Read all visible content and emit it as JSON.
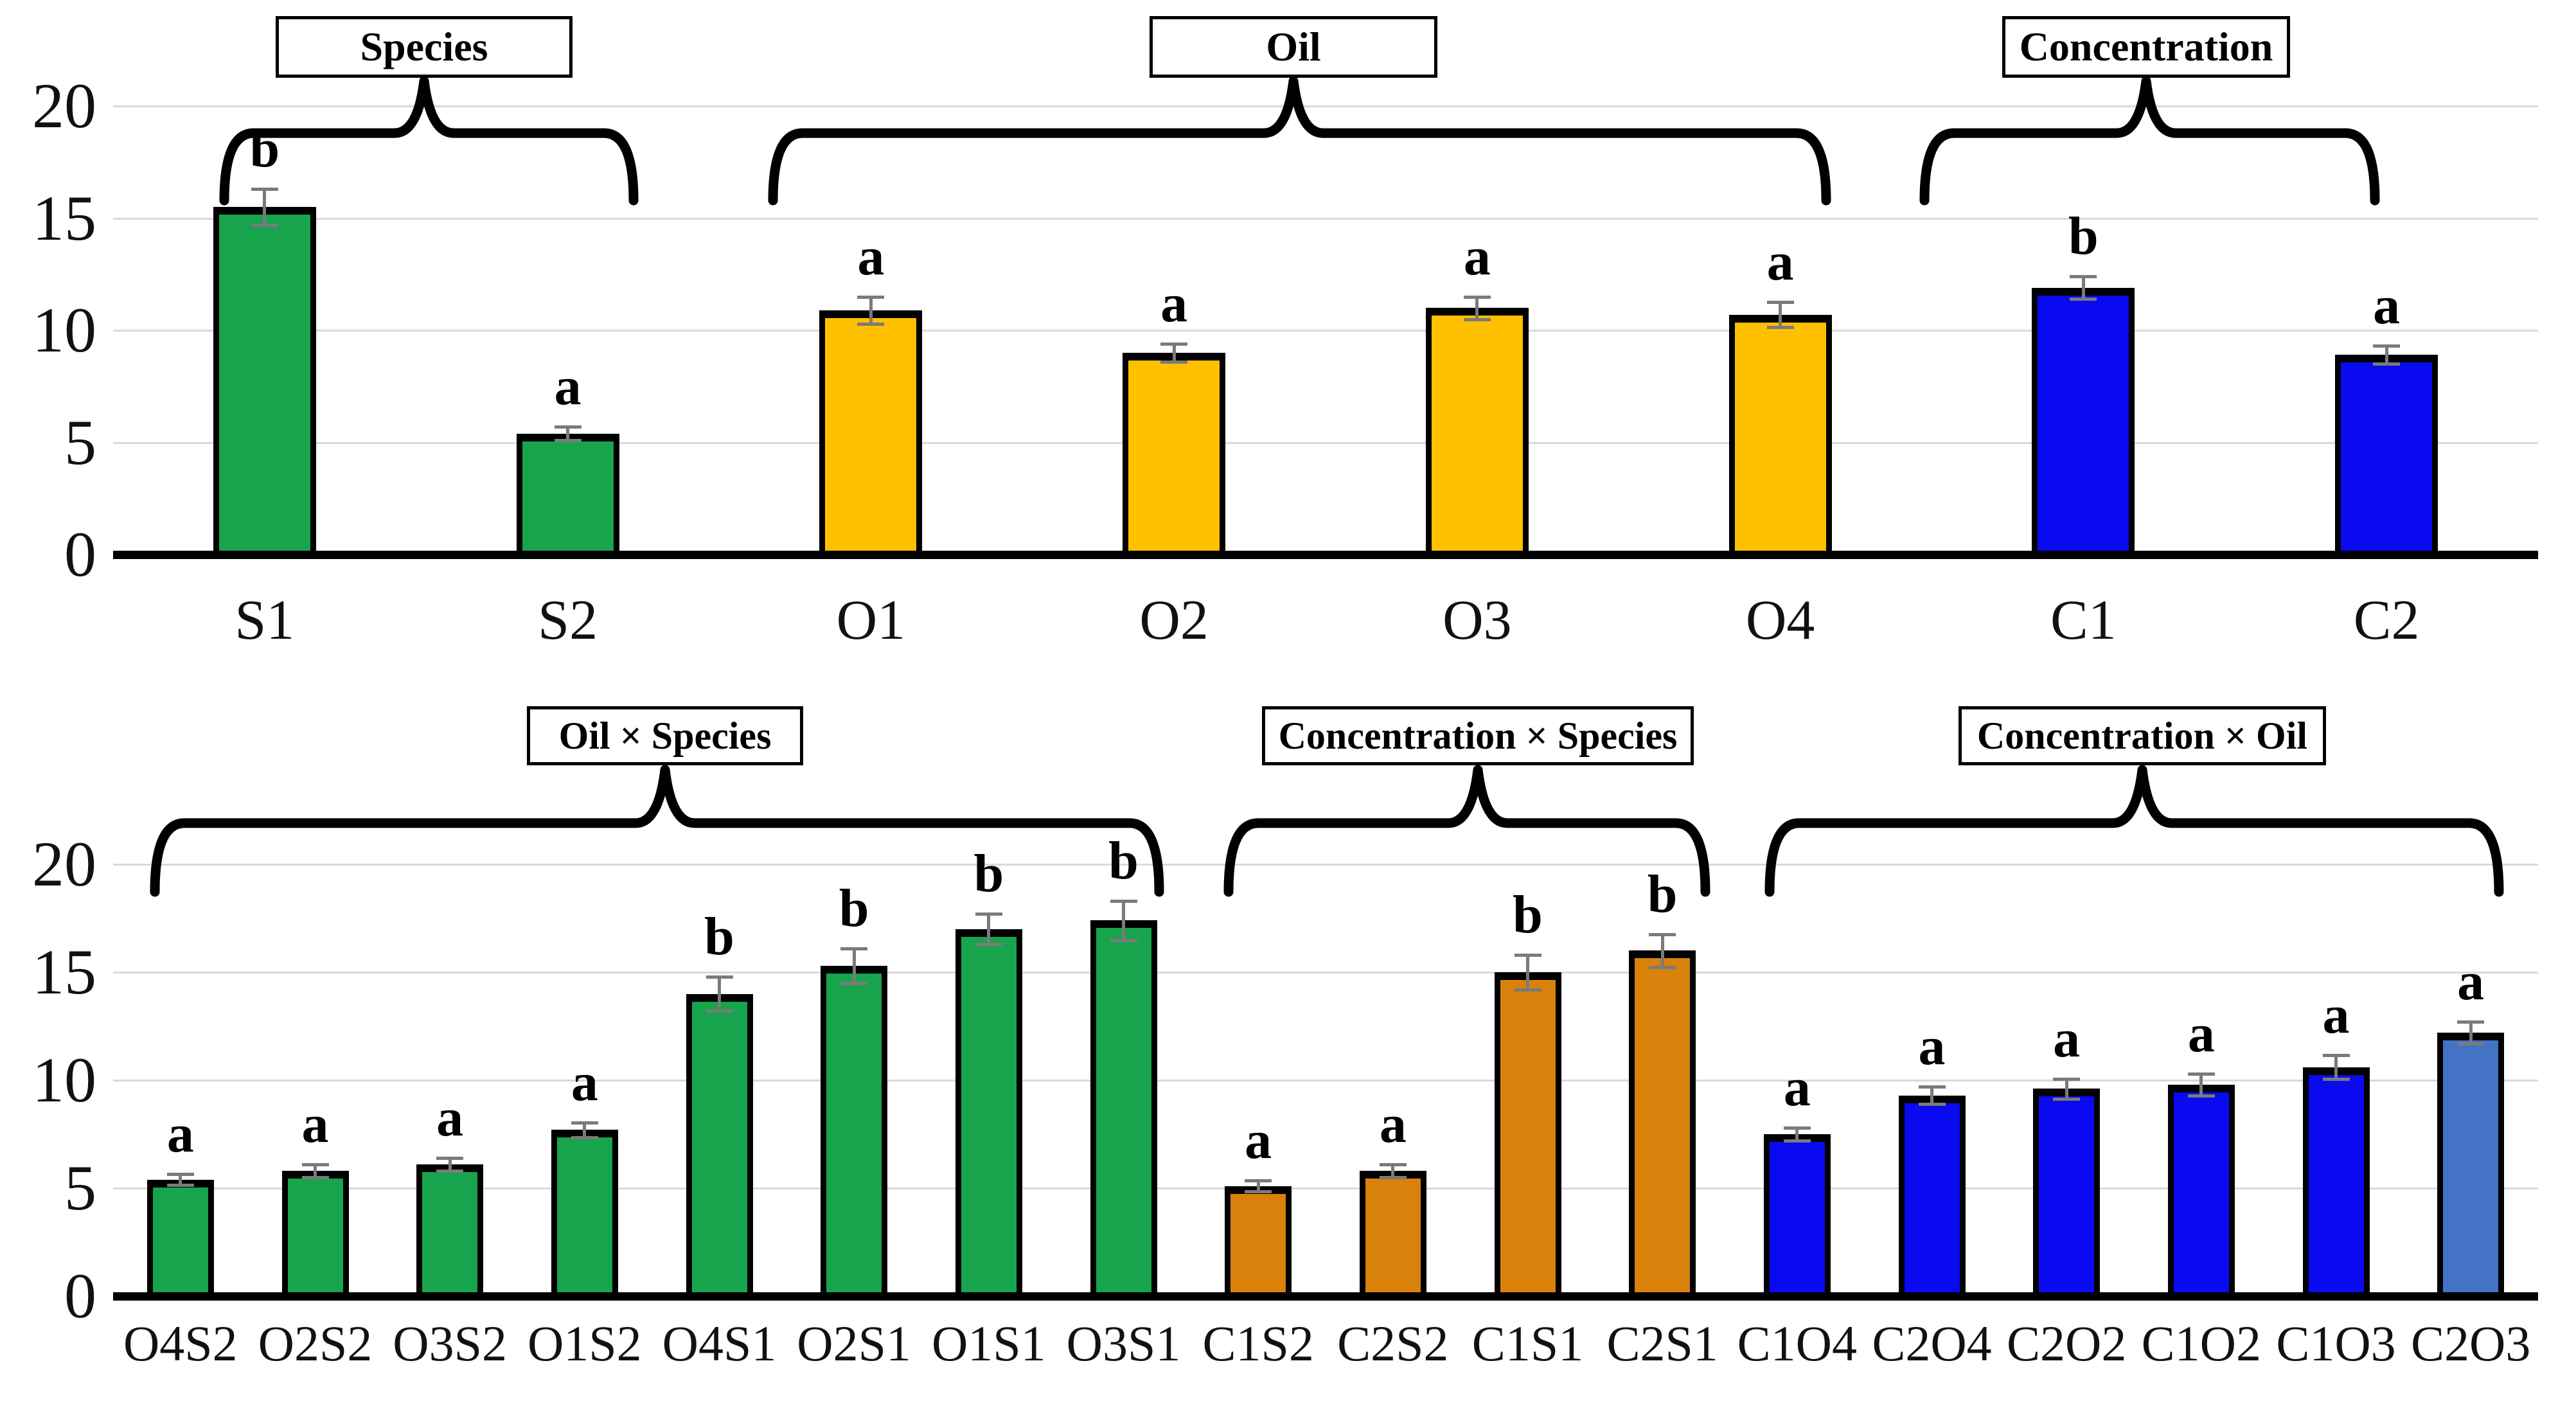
{
  "figure": {
    "background": "#ffffff",
    "palette": {
      "green": "#17A44C",
      "gold": "#FFC000",
      "blue": "#0A0AF0",
      "orange": "#D8820C",
      "steel_blue": "#4472C4",
      "bar_border": "#000000",
      "error_bar": "#7a7a7a",
      "gridline": "#d9d9d9",
      "axis": "#000000"
    }
  },
  "chart_data": [
    {
      "id": "main-effects",
      "type": "bar",
      "title": "",
      "categories": [
        "S1",
        "S2",
        "O1",
        "O2",
        "O3",
        "O4",
        "C1",
        "C2"
      ],
      "values": [
        15.5,
        5.4,
        10.9,
        9.0,
        11.0,
        10.7,
        11.9,
        8.9
      ],
      "errors": [
        0.8,
        0.3,
        0.6,
        0.4,
        0.5,
        0.55,
        0.5,
        0.4
      ],
      "letters": [
        "b",
        "a",
        "a",
        "a",
        "a",
        "a",
        "b",
        "a"
      ],
      "bar_colors": [
        "green",
        "green",
        "gold",
        "gold",
        "gold",
        "gold",
        "blue",
        "blue"
      ],
      "groups": [
        {
          "label": "Species",
          "members": [
            "S1",
            "S2"
          ]
        },
        {
          "label": "Oil",
          "members": [
            "O1",
            "O2",
            "O3",
            "O4"
          ]
        },
        {
          "label": "Concentration",
          "members": [
            "C1",
            "C2"
          ]
        }
      ],
      "y_ticks": [
        0,
        5,
        10,
        15,
        20
      ],
      "ylim": [
        0,
        20
      ],
      "xlabel": "",
      "ylabel": "",
      "grid": true,
      "legend": false
    },
    {
      "id": "interaction-effects",
      "type": "bar",
      "title": "",
      "categories": [
        "O4S2",
        "O2S2",
        "O3S2",
        "O1S2",
        "O4S1",
        "O2S1",
        "O1S1",
        "O3S1",
        "C1S2",
        "C2S2",
        "C1S1",
        "C2S1",
        "C1O4",
        "C2O4",
        "C2O2",
        "C1O2",
        "C1O3",
        "C2O3"
      ],
      "values": [
        5.4,
        5.8,
        6.1,
        7.7,
        14.0,
        15.3,
        17.0,
        17.4,
        5.1,
        5.8,
        15.0,
        16.0,
        7.5,
        9.3,
        9.6,
        9.8,
        10.6,
        12.2
      ],
      "errors": [
        0.25,
        0.3,
        0.3,
        0.35,
        0.8,
        0.8,
        0.7,
        0.9,
        0.25,
        0.3,
        0.8,
        0.75,
        0.3,
        0.4,
        0.45,
        0.5,
        0.55,
        0.5
      ],
      "letters": [
        "a",
        "a",
        "a",
        "a",
        "b",
        "b",
        "b",
        "b",
        "a",
        "a",
        "b",
        "b",
        "a",
        "a",
        "a",
        "a",
        "a",
        "a"
      ],
      "bar_colors": [
        "green",
        "green",
        "green",
        "green",
        "green",
        "green",
        "green",
        "green",
        "orange",
        "orange",
        "orange",
        "orange",
        "blue",
        "blue",
        "blue",
        "blue",
        "blue",
        "steel_blue"
      ],
      "groups": [
        {
          "label": "Oil × Species",
          "members": [
            "O4S2",
            "O2S2",
            "O3S2",
            "O1S2",
            "O4S1",
            "O2S1",
            "O1S1",
            "O3S1"
          ]
        },
        {
          "label": "Concentration × Species",
          "members": [
            "C1S2",
            "C2S2",
            "C1S1",
            "C2S1"
          ]
        },
        {
          "label": "Concentration × Oil",
          "members": [
            "C1O4",
            "C2O4",
            "C2O2",
            "C1O2",
            "C1O3",
            "C2O3"
          ]
        }
      ],
      "y_ticks": [
        0,
        5,
        10,
        15,
        20
      ],
      "ylim": [
        0,
        20
      ],
      "xlabel": "",
      "ylabel": "",
      "grid": true,
      "legend": false
    }
  ]
}
